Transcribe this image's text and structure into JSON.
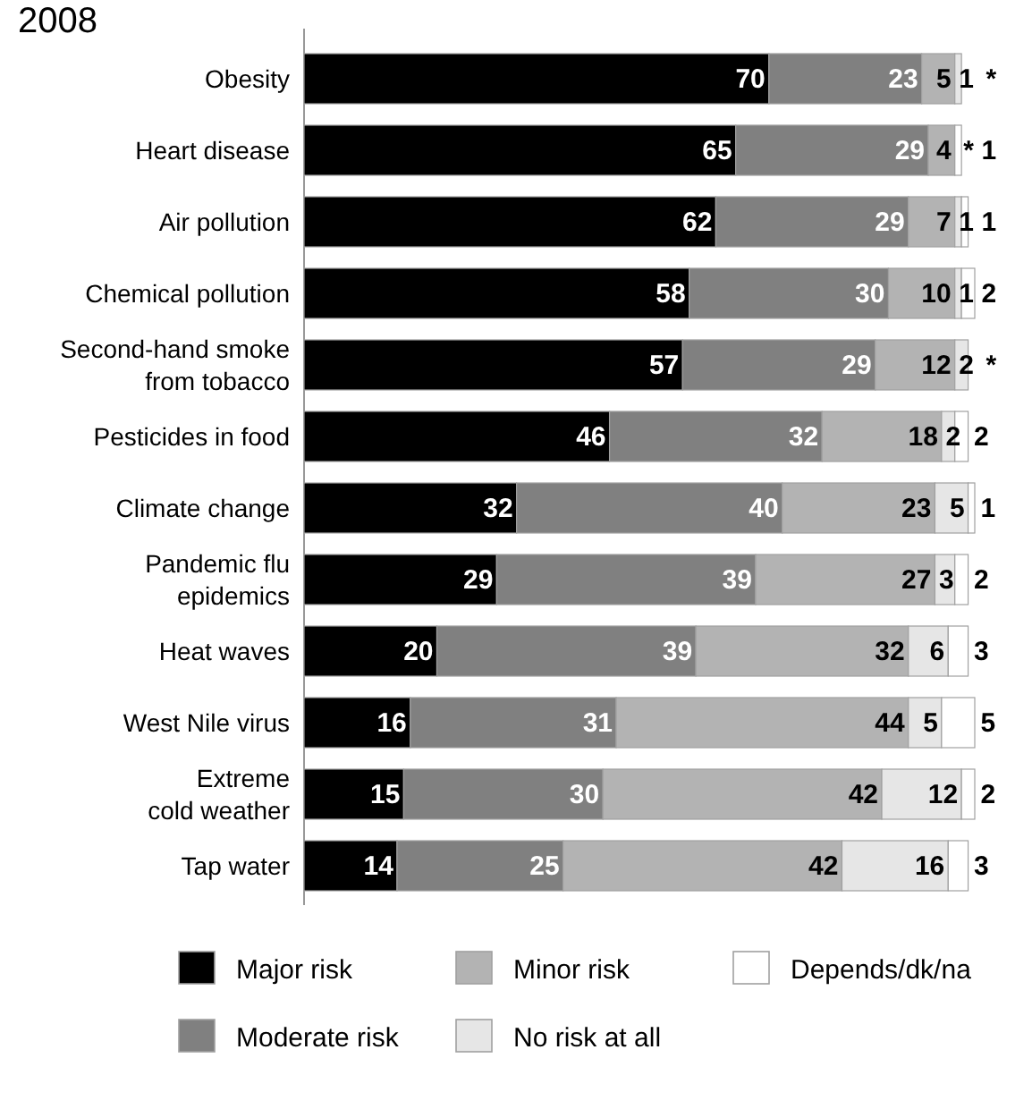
{
  "chart_data": {
    "type": "bar",
    "orientation": "horizontal",
    "stacked": true,
    "title": "2008",
    "legend": "bottom",
    "categories": [
      "Obesity",
      "Heart disease",
      "Air pollution",
      "Chemical pollution",
      "Second-hand smoke\nfrom tobacco",
      "Pesticides in food",
      "Climate change",
      "Pandemic flu\nepidemics",
      "Heat waves",
      "West Nile virus",
      "Extreme\ncold weather",
      "Tap water"
    ],
    "series": [
      {
        "name": "Major risk",
        "color": "#000000",
        "values": [
          70,
          65,
          62,
          58,
          57,
          46,
          32,
          29,
          20,
          16,
          15,
          14
        ],
        "value_labels": [
          "70",
          "65",
          "62",
          "58",
          "57",
          "46",
          "32",
          "29",
          "20",
          "16",
          "15",
          "14"
        ]
      },
      {
        "name": "Moderate risk",
        "color": "#808080",
        "values": [
          23,
          29,
          29,
          30,
          29,
          32,
          40,
          39,
          39,
          31,
          30,
          25
        ],
        "value_labels": [
          "23",
          "29",
          "29",
          "30",
          "29",
          "32",
          "40",
          "39",
          "39",
          "31",
          "30",
          "25"
        ]
      },
      {
        "name": "Minor risk",
        "color": "#b3b3b3",
        "values": [
          5,
          4,
          7,
          10,
          12,
          18,
          23,
          27,
          32,
          44,
          42,
          42
        ],
        "value_labels": [
          "5",
          "4",
          "7",
          "10",
          "12",
          "18",
          "23",
          "27",
          "32",
          "44",
          "42",
          "42"
        ]
      },
      {
        "name": "No risk at all",
        "color": "#e6e6e6",
        "values": [
          1,
          0,
          1,
          1,
          2,
          2,
          5,
          3,
          6,
          5,
          12,
          16
        ],
        "value_labels": [
          "1",
          "*",
          "1",
          "1",
          "2",
          "2",
          "5",
          "3",
          "6",
          "5",
          "12",
          "16"
        ]
      },
      {
        "name": "Depends/dk/na",
        "color": "#ffffff",
        "values": [
          0,
          1,
          1,
          2,
          0,
          2,
          1,
          2,
          3,
          5,
          2,
          3
        ],
        "value_labels": [
          "*",
          "1",
          "1",
          "2",
          "*",
          "2",
          "1",
          "2",
          "3",
          "5",
          "2",
          "3"
        ]
      }
    ]
  }
}
